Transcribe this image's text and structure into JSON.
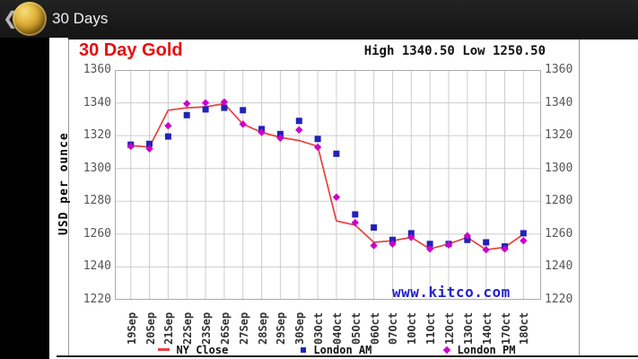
{
  "topbar": {
    "back_icon": "❮",
    "title": "30 Days"
  },
  "chart": {
    "title": "30 Day Gold",
    "high_low": "High 1340.50 Low 1250.50",
    "watermark": "www.kitco.com",
    "colors": {
      "title_red": "#e80e0e",
      "ny_close": "#e94040",
      "london_am": "#2222b8",
      "london_pm": "#cc00cc",
      "watermark_blue": "#2222cc",
      "grid": "#cdcdcd"
    }
  },
  "chart_data": {
    "type": "line",
    "title": "30 Day Gold",
    "ylabel": "USD per ounce",
    "ylim": [
      1220,
      1360
    ],
    "ytick_step": 20,
    "grid": true,
    "legend_position": "bottom",
    "high": 1340.5,
    "low": 1250.5,
    "x": [
      "19Sep",
      "20Sep",
      "21Sep",
      "22Sep",
      "23Sep",
      "26Sep",
      "27Sep",
      "28Sep",
      "29Sep",
      "30Sep",
      "03Oct",
      "04Oct",
      "05Oct",
      "06Oct",
      "07Oct",
      "10Oct",
      "11Oct",
      "12Oct",
      "13Oct",
      "14Oct",
      "17Oct",
      "18Oct"
    ],
    "series": [
      {
        "name": "NY Close",
        "style": "line",
        "color": "#e94040",
        "values": [
          1314,
          1313,
          1335.5,
          1337,
          1337.5,
          1339.5,
          1327,
          1322,
          1319,
          1317,
          1313.5,
          1268,
          1265.5,
          1255,
          1256,
          1258,
          1251,
          1254,
          1258,
          1250.5,
          1252,
          1260
        ]
      },
      {
        "name": "London AM",
        "style": "square",
        "color": "#2222b8",
        "values": [
          1314.5,
          1315,
          1319.5,
          1332.5,
          1336,
          1337,
          1335.5,
          1324,
          1321,
          1329,
          1318,
          1309,
          1272,
          1264,
          1256.5,
          1260.5,
          1254,
          1254,
          1256.5,
          1255,
          1252.5,
          1260.5
        ]
      },
      {
        "name": "London PM",
        "style": "diamond",
        "color": "#cc00cc",
        "values": [
          1313.5,
          1312,
          1326,
          1339.5,
          1340,
          1340.5,
          1327,
          1322,
          1318.5,
          1323.5,
          1313,
          1282.5,
          1267,
          1253,
          1254,
          1258,
          1251,
          1253.5,
          1259,
          1250.5,
          1251,
          1256
        ]
      }
    ]
  }
}
